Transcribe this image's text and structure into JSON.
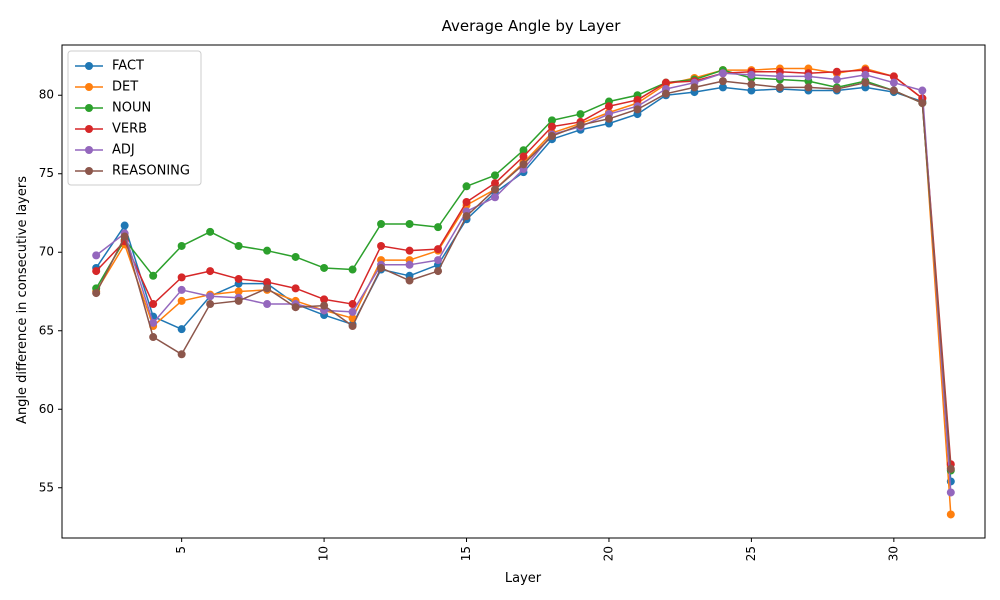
{
  "chart_data": {
    "type": "line",
    "title": "Average Angle by Layer",
    "xlabel": "Layer",
    "ylabel": "Angle difference in consecutive layers",
    "xlim": [
      0.8,
      33.2
    ],
    "ylim": [
      51.8,
      83.2
    ],
    "xticks": [
      5,
      10,
      15,
      20,
      25,
      30
    ],
    "xtick_labels": [
      "5",
      "10",
      "15",
      "20",
      "25",
      "30"
    ],
    "yticks": [
      55,
      60,
      65,
      70,
      75,
      80
    ],
    "ytick_labels": [
      "55",
      "60",
      "65",
      "70",
      "75",
      "80"
    ],
    "xtick_rotation": 90,
    "grid": false,
    "legend_position": "upper-left",
    "marker": "circle",
    "x": [
      2,
      3,
      4,
      5,
      6,
      7,
      8,
      9,
      10,
      11,
      12,
      13,
      14,
      15,
      16,
      17,
      18,
      19,
      20,
      21,
      22,
      23,
      24,
      25,
      26,
      27,
      28,
      29,
      30,
      31,
      32
    ],
    "series": [
      {
        "name": "FACT",
        "color": "#1f77b4",
        "values": [
          69.0,
          71.7,
          65.9,
          65.1,
          67.2,
          68.0,
          68.0,
          66.7,
          66.0,
          65.4,
          68.9,
          68.5,
          69.2,
          72.1,
          73.8,
          75.1,
          77.2,
          77.8,
          78.2,
          78.8,
          80.0,
          80.2,
          80.5,
          80.3,
          80.4,
          80.3,
          80.3,
          80.5,
          80.2,
          79.6,
          55.4
        ]
      },
      {
        "name": "DET",
        "color": "#ff7f0e",
        "values": [
          67.5,
          70.5,
          65.3,
          66.9,
          67.3,
          67.5,
          67.6,
          66.9,
          66.3,
          65.8,
          69.5,
          69.5,
          70.1,
          73.0,
          74.0,
          75.7,
          77.6,
          78.2,
          78.9,
          79.5,
          80.7,
          81.1,
          81.6,
          81.6,
          81.7,
          81.7,
          81.4,
          81.7,
          81.2,
          79.8,
          53.3
        ]
      },
      {
        "name": "NOUN",
        "color": "#2ca02c",
        "values": [
          67.7,
          70.8,
          68.5,
          70.4,
          71.3,
          70.4,
          70.1,
          69.7,
          69.0,
          68.9,
          71.8,
          71.8,
          71.6,
          74.2,
          74.9,
          76.5,
          78.4,
          78.8,
          79.6,
          80.0,
          80.8,
          81.0,
          81.6,
          81.1,
          81.0,
          80.9,
          80.5,
          80.9,
          80.3,
          79.5,
          56.1
        ]
      },
      {
        "name": "VERB",
        "color": "#d62728",
        "values": [
          68.8,
          70.7,
          66.7,
          68.4,
          68.8,
          68.3,
          68.1,
          67.7,
          67.0,
          66.7,
          70.4,
          70.1,
          70.2,
          73.2,
          74.4,
          76.1,
          78.0,
          78.3,
          79.3,
          79.7,
          80.8,
          80.9,
          81.4,
          81.5,
          81.5,
          81.4,
          81.5,
          81.6,
          81.2,
          79.8,
          56.5
        ]
      },
      {
        "name": "ADJ",
        "color": "#9467bd",
        "values": [
          69.8,
          71.2,
          65.5,
          67.6,
          67.2,
          67.1,
          66.7,
          66.7,
          66.3,
          66.2,
          69.2,
          69.2,
          69.5,
          72.6,
          73.5,
          75.3,
          77.5,
          78.0,
          78.8,
          79.3,
          80.4,
          80.8,
          81.4,
          81.3,
          81.2,
          81.2,
          81.0,
          81.3,
          80.8,
          80.3,
          54.7
        ]
      },
      {
        "name": "REASONING",
        "color": "#8c564b",
        "values": [
          67.4,
          71.0,
          64.6,
          63.5,
          66.7,
          66.9,
          67.7,
          66.5,
          66.6,
          65.3,
          69.0,
          68.2,
          68.8,
          72.3,
          74.0,
          75.6,
          77.4,
          78.1,
          78.5,
          79.1,
          80.1,
          80.5,
          80.9,
          80.7,
          80.5,
          80.5,
          80.4,
          80.8,
          80.3,
          79.5,
          56.2
        ]
      }
    ]
  }
}
